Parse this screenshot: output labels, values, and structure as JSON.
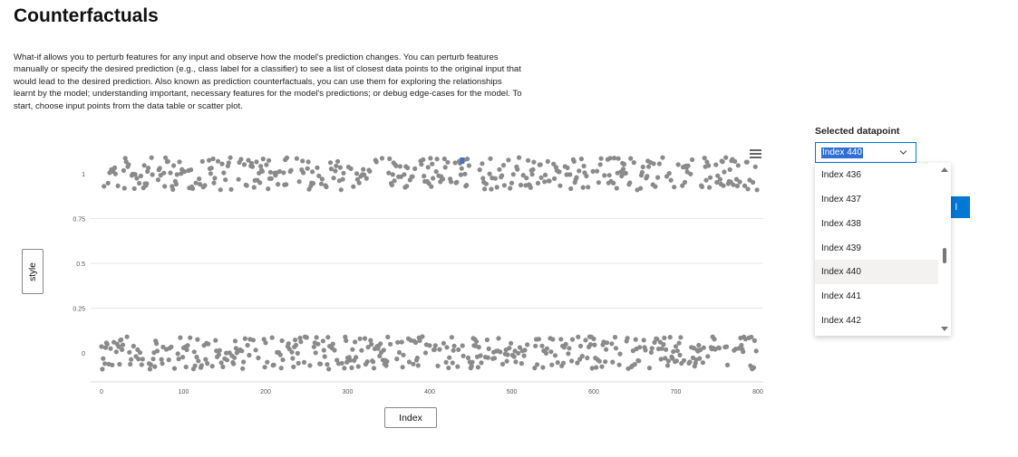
{
  "page": {
    "title": "Counterfactuals",
    "description": "What-if allows you to perturb features for any input and observe how the model's prediction changes. You can perturb features manually or specify the desired prediction (e.g., class label for a classifier) to see a list of closest data points to the original input that would lead to the desired prediction. Also known as prediction counterfactuals, you can use them for exploring the relationships learnt by the model; understanding important, necessary features for the model's predictions; or debug edge-cases for the model. To start, choose input points from the data table or scatter plot."
  },
  "chart": {
    "y_axis_button": "style",
    "x_axis_button": "Index",
    "menu_icon": "hamburger-menu-icon"
  },
  "chart_data": {
    "type": "scatter",
    "title": "",
    "xlabel": "Index",
    "ylabel": "style",
    "xlim": [
      0,
      800
    ],
    "ylim": [
      -0.1,
      1.1
    ],
    "x_ticks": [
      "0",
      "100",
      "200",
      "300",
      "400",
      "500",
      "600",
      "700",
      "800"
    ],
    "y_ticks": [
      "0",
      "0.25",
      "0.5",
      "0.75",
      "1"
    ],
    "grid": true,
    "point_color": "#8a8a8a",
    "highlight_color": "#4472c4",
    "highlight_point": {
      "x": 440,
      "y": 1
    },
    "series": [
      {
        "values_note_x_range": [
          0,
          799
        ],
        "y_values": [
          0,
          1
        ],
        "point_count": 800
      }
    ]
  },
  "selector": {
    "label": "Selected datapoint",
    "value": "Index 440",
    "options": [
      "Index 436",
      "Index 437",
      "Index 438",
      "Index 439",
      "Index 440",
      "Index 441",
      "Index 442"
    ],
    "selected_option": "Index 440",
    "button_label": "l"
  },
  "colors": {
    "accent": "#0078d4",
    "points": "#8a8a8a",
    "highlight": "#4472c4"
  }
}
